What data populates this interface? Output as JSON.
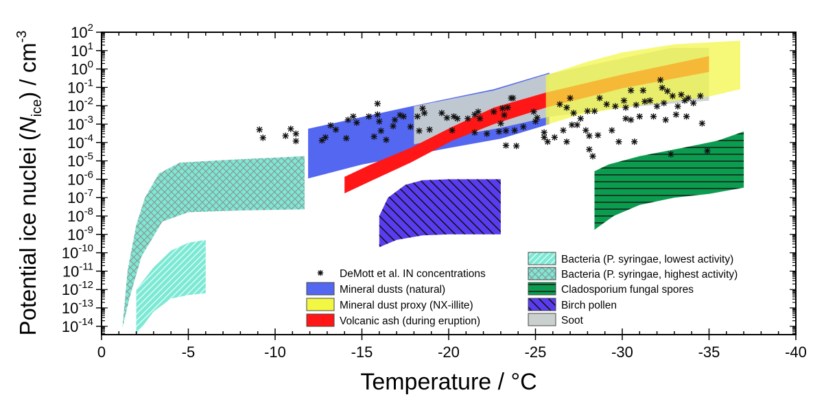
{
  "chart_data": {
    "type": "area",
    "xlabel": "Temperature / °C",
    "ylabel": {
      "prefix": "Potential ice nuclei (",
      "symbol": "N",
      "sub": "ice",
      "suffix": ") / cm",
      "sup": "-3"
    },
    "xlim": [
      0,
      -40
    ],
    "ylim": [
      3.5e-15,
      100
    ],
    "y_scale": "log",
    "grid": false,
    "legend_placement": "bottom-center (inside plot)",
    "x_ticks": [
      0,
      -5,
      -10,
      -15,
      -20,
      -25,
      -30,
      -35,
      -40
    ],
    "x_tick_labels": [
      "0",
      "-5",
      "-10",
      "-15",
      "-20",
      "-25",
      "-30",
      "-35",
      "-40"
    ],
    "y_ticks": [
      {
        "base": "10",
        "exp": "2"
      },
      {
        "base": "10",
        "exp": "1"
      },
      {
        "base": "10",
        "exp": "0"
      },
      {
        "base": "10",
        "exp": "-1"
      },
      {
        "base": "10",
        "exp": "-2"
      },
      {
        "base": "10",
        "exp": "-3"
      },
      {
        "base": "10",
        "exp": "-4"
      },
      {
        "base": "10",
        "exp": "-5"
      },
      {
        "base": "10",
        "exp": "-6"
      },
      {
        "base": "10",
        "exp": "-7"
      },
      {
        "base": "10",
        "exp": "-8"
      },
      {
        "base": "10",
        "exp": "-9"
      },
      {
        "base": "10",
        "exp": "-10"
      },
      {
        "base": "10",
        "exp": "-11"
      },
      {
        "base": "10",
        "exp": "-12"
      },
      {
        "base": "10",
        "exp": "-13"
      },
      {
        "base": "10",
        "exp": "-14"
      }
    ],
    "regions": [
      {
        "name": "Bacteria (P. syringae, highest activity)",
        "color": "#7ee8d4",
        "pattern": "crosshatch",
        "upper": [
          [
            -1.2,
            7.9e-15
          ],
          [
            -1.5,
            1e-11
          ],
          [
            -2,
            3.2e-09
          ],
          [
            -2.5,
            1e-07
          ],
          [
            -3.3,
            2e-06
          ],
          [
            -4.5,
            7.9e-06
          ],
          [
            -7,
            1.1e-05
          ],
          [
            -11.7,
            1.8e-05
          ]
        ],
        "lower": [
          [
            -1.2,
            7.9e-15
          ],
          [
            -1.6,
            3.2e-13
          ],
          [
            -2.3,
            6.3e-11
          ],
          [
            -3.5,
            5e-09
          ],
          [
            -5,
            1.6e-08
          ],
          [
            -8,
            2e-08
          ],
          [
            -11.7,
            2.3e-08
          ]
        ]
      },
      {
        "name": "Bacteria (P. syringae, lowest activity)",
        "color": "#7ee8d4",
        "pattern": "diagonal-light",
        "upper": [
          [
            -2,
            1e-12
          ],
          [
            -3,
            1.6e-11
          ],
          [
            -4,
            1.3e-10
          ],
          [
            -5,
            3.5e-10
          ],
          [
            -6,
            5e-10
          ]
        ],
        "lower": [
          [
            -2,
            3.5e-15
          ],
          [
            -3,
            6.3e-14
          ],
          [
            -4,
            3.2e-13
          ],
          [
            -5,
            5e-13
          ],
          [
            -6,
            6.3e-13
          ]
        ]
      },
      {
        "name": "Mineral dusts (natural)",
        "color": "#5367f0",
        "pattern": "solid",
        "upper": [
          [
            -11.9,
            0.00056
          ],
          [
            -18,
            0.01
          ],
          [
            -22.6,
            0.079
          ],
          [
            -25.8,
            0.63
          ]
        ],
        "lower": [
          [
            -11.9,
            1.1e-06
          ],
          [
            -15,
            6.3e-06
          ],
          [
            -20,
            5e-05
          ],
          [
            -23,
            0.00016
          ],
          [
            -25.8,
            0.001
          ]
        ]
      },
      {
        "name": "Soot",
        "color": "#c9d0cd",
        "pattern": "solid",
        "upper": [
          [
            -18,
            0.0093
          ],
          [
            -22.6,
            0.068
          ],
          [
            -25.6,
            0.5
          ],
          [
            -32.8,
            14
          ],
          [
            -35,
            14
          ]
        ],
        "lower": [
          [
            -18,
            7.9e-05
          ],
          [
            -20,
            0.0002
          ],
          [
            -23,
            0.00063
          ],
          [
            -25.8,
            0.0025
          ],
          [
            -30,
            0.0079
          ],
          [
            -35,
            0.019
          ]
        ]
      },
      {
        "name": "Volcanic ash (during eruption)",
        "color": "#ff1616",
        "pattern": "solid",
        "upper": [
          [
            -14,
            1.35e-06
          ],
          [
            -15.5,
            6.3e-06
          ],
          [
            -17.8,
            5e-05
          ],
          [
            -20.2,
            0.00071
          ],
          [
            -22.6,
            0.0079
          ],
          [
            -25.6,
            0.052
          ],
          [
            -30,
            0.5
          ],
          [
            -35,
            5
          ]
        ],
        "lower": [
          [
            -14,
            1.7e-07
          ],
          [
            -15.5,
            7.9e-07
          ],
          [
            -17.8,
            7.9e-06
          ],
          [
            -20.2,
            0.000126
          ],
          [
            -22.6,
            0.001
          ],
          [
            -25.6,
            0.0079
          ],
          [
            -30,
            0.089
          ],
          [
            -35,
            0.69
          ]
        ]
      },
      {
        "name": "Mineral dust proxy (NX-illite)",
        "color": "#f2f744",
        "pattern": "solid",
        "upper": [
          [
            -25.6,
            0.45
          ],
          [
            -28,
            2.5
          ],
          [
            -30,
            7.9
          ],
          [
            -33,
            22
          ],
          [
            -36.8,
            35
          ]
        ],
        "lower": [
          [
            -25.6,
            0.00089
          ],
          [
            -27.5,
            0.0032
          ],
          [
            -30,
            0.0079
          ],
          [
            -35,
            0.032
          ],
          [
            -36.8,
            0.079
          ]
        ]
      },
      {
        "name": "Birch pollen",
        "color": "#5a3cf0",
        "pattern": "diagonal-dark",
        "upper": [
          [
            -16,
            1e-08
          ],
          [
            -16.5,
            1e-07
          ],
          [
            -17.5,
            5e-07
          ],
          [
            -18.5,
            8.9e-07
          ],
          [
            -20,
            1e-06
          ],
          [
            -23,
            1e-06
          ]
        ],
        "lower": [
          [
            -16,
            2e-10
          ],
          [
            -17,
            5e-10
          ],
          [
            -18.5,
            8.9e-10
          ],
          [
            -20,
            1e-09
          ],
          [
            -23,
            1e-09
          ]
        ]
      },
      {
        "name": "Cladosporium fungal spores",
        "color": "#0b9c50",
        "pattern": "horizontal",
        "upper": [
          [
            -28.4,
            2.7e-06
          ],
          [
            -29.2,
            6.3e-06
          ],
          [
            -31,
            1.8e-05
          ],
          [
            -33.6,
            5.4e-05
          ],
          [
            -35.5,
            0.000126
          ],
          [
            -37,
            0.0004
          ]
        ],
        "lower": [
          [
            -28.4,
            1.8e-09
          ],
          [
            -29.5,
            1e-08
          ],
          [
            -31,
            4e-08
          ],
          [
            -33,
            1e-07
          ],
          [
            -35,
            1.6e-07
          ],
          [
            -37,
            3.5e-07
          ]
        ]
      }
    ],
    "scatter": {
      "name": "DeMott et al. IN concentrations",
      "marker": "asterisk",
      "points": [
        [
          -9.1,
          0.0005
        ],
        [
          -9.3,
          0.00018
        ],
        [
          -10.6,
          0.00023
        ],
        [
          -10.9,
          0.00055
        ],
        [
          -11.2,
          0.0003
        ],
        [
          -11.2,
          0.00012
        ],
        [
          -12.7,
          0.00013
        ],
        [
          -12.9,
          0.00019
        ],
        [
          -13.2,
          0.00085
        ],
        [
          -13.5,
          0.0005
        ],
        [
          -14.1,
          0.00017
        ],
        [
          -14.2,
          0.0017
        ],
        [
          -14.5,
          0.0026
        ],
        [
          -14.7,
          0.0012
        ],
        [
          -15.4,
          0.0026
        ],
        [
          -15.9,
          0.013
        ],
        [
          -15.9,
          0.0033
        ],
        [
          -16.0,
          0.0014
        ],
        [
          -16.1,
          0.00043
        ],
        [
          -15.7,
          0.00021
        ],
        [
          -16.4,
          0.00014
        ],
        [
          -16.8,
          0.00078
        ],
        [
          -16.9,
          0.0017
        ],
        [
          -17.2,
          0.0031
        ],
        [
          -17.4,
          0.0026
        ],
        [
          -17.8,
          0.00071
        ],
        [
          -18.2,
          0.0026
        ],
        [
          -18.3,
          0.00043
        ],
        [
          -18.5,
          0.0072
        ],
        [
          -18.6,
          0.004
        ],
        [
          -18.9,
          0.0005
        ],
        [
          -19.6,
          0.004
        ],
        [
          -19.9,
          0.0022
        ],
        [
          -20.3,
          0.0026
        ],
        [
          -20.5,
          0.002
        ],
        [
          -21.1,
          0.002
        ],
        [
          -21.5,
          0.0033
        ],
        [
          -21.7,
          0.0047
        ],
        [
          -21.8,
          0.002
        ],
        [
          -22.6,
          0.0047
        ],
        [
          -23.2,
          0.0031
        ],
        [
          -23.4,
          0.0079
        ],
        [
          -23.6,
          0.026
        ],
        [
          -23.0,
          0.0011
        ],
        [
          -20.2,
          0.00046
        ],
        [
          -21.5,
          0.00035
        ],
        [
          -22.2,
          0.0003
        ],
        [
          -22.9,
          0.00039
        ],
        [
          -23.3,
          0.00043
        ],
        [
          -23.8,
          0.00046
        ],
        [
          -23.3,
          6.9e-05
        ],
        [
          -23.9,
          6.5e-05
        ],
        [
          -23.7,
          0.026
        ],
        [
          -23.1,
          0.0072
        ],
        [
          -24.3,
          0.00071
        ],
        [
          -24.9,
          0.0047
        ],
        [
          -25.1,
          0.0022
        ],
        [
          -25.0,
          0.0014
        ],
        [
          -25.5,
          0.00035
        ],
        [
          -25.5,
          0.00019
        ],
        [
          -25.7,
          0.00011
        ],
        [
          -26.1,
          0.00019
        ],
        [
          -26.4,
          0.012
        ],
        [
          -27.0,
          0.026
        ],
        [
          -26.8,
          0.0079
        ],
        [
          -27.2,
          0.004
        ],
        [
          -26.6,
          0.00046
        ],
        [
          -26.8,
          0.00011
        ],
        [
          -27.1,
          0.00091
        ],
        [
          -27.6,
          0.002
        ],
        [
          -27.4,
          0.00091
        ],
        [
          -27.9,
          0.00046
        ],
        [
          -28.1,
          0.00023
        ],
        [
          -28.1,
          4.2e-05
        ],
        [
          -28.3,
          1.8e-05
        ],
        [
          -28.6,
          0.00025
        ],
        [
          -28.0,
          0.0051
        ],
        [
          -28.4,
          0.0051
        ],
        [
          -28.7,
          0.026
        ],
        [
          -29.1,
          0.012
        ],
        [
          -29.4,
          0.00046
        ],
        [
          -29.6,
          0.0093
        ],
        [
          -29.8,
          0.00011
        ],
        [
          -30.1,
          0.019
        ],
        [
          -30.2,
          0.0079
        ],
        [
          -30.5,
          0.068
        ],
        [
          -30.2,
          0.002
        ],
        [
          -30.5,
          0.0017
        ],
        [
          -31.0,
          0.0026
        ],
        [
          -30.7,
          0.00011
        ],
        [
          -31.2,
          0.068
        ],
        [
          -30.8,
          0.011
        ],
        [
          -31.3,
          0.017
        ],
        [
          -31.6,
          0.019
        ],
        [
          -32.0,
          0.0093
        ],
        [
          -31.8,
          0.0026
        ],
        [
          -32.2,
          0.25
        ],
        [
          -32.3,
          0.095
        ],
        [
          -32.6,
          0.062
        ],
        [
          -32.4,
          0.014
        ],
        [
          -32.5,
          0.0017
        ],
        [
          -32.9,
          0.034
        ],
        [
          -33.1,
          0.0033
        ],
        [
          -33.2,
          0.0093
        ],
        [
          -33.4,
          0.04
        ],
        [
          -33.7,
          0.0026
        ],
        [
          -33.6,
          0.019
        ],
        [
          -33.8,
          0.026
        ],
        [
          -34.1,
          0.014
        ],
        [
          -34.5,
          0.034
        ],
        [
          -34.6,
          0.0011
        ],
        [
          -32.8,
          2.3e-05
        ],
        [
          -34.9,
          3.5e-05
        ]
      ]
    },
    "legend": [
      {
        "label": "DeMott et al. IN concentrations",
        "marker": "asterisk"
      },
      {
        "label": "Mineral dusts (natural)",
        "color": "#5367f0",
        "pattern": "solid"
      },
      {
        "label": "Mineral dust proxy (NX-illite)",
        "color": "#f2f744",
        "pattern": "solid"
      },
      {
        "label": "Volcanic ash (during eruption)",
        "color": "#ff1616",
        "pattern": "solid"
      },
      {
        "label": "Bacteria (P. syringae, lowest activity)",
        "color": "#7ee8d4",
        "pattern": "diagonal-light"
      },
      {
        "label": "Bacteria (P. syringae, highest activity)",
        "color": "#7ee8d4",
        "pattern": "crosshatch"
      },
      {
        "label": "Cladosporium fungal spores",
        "color": "#0b9c50",
        "pattern": "horizontal"
      },
      {
        "label": "Birch pollen",
        "color": "#5a3cf0",
        "pattern": "diagonal-dark"
      },
      {
        "label": "Soot",
        "color": "#c9d0cd",
        "pattern": "solid"
      }
    ]
  }
}
